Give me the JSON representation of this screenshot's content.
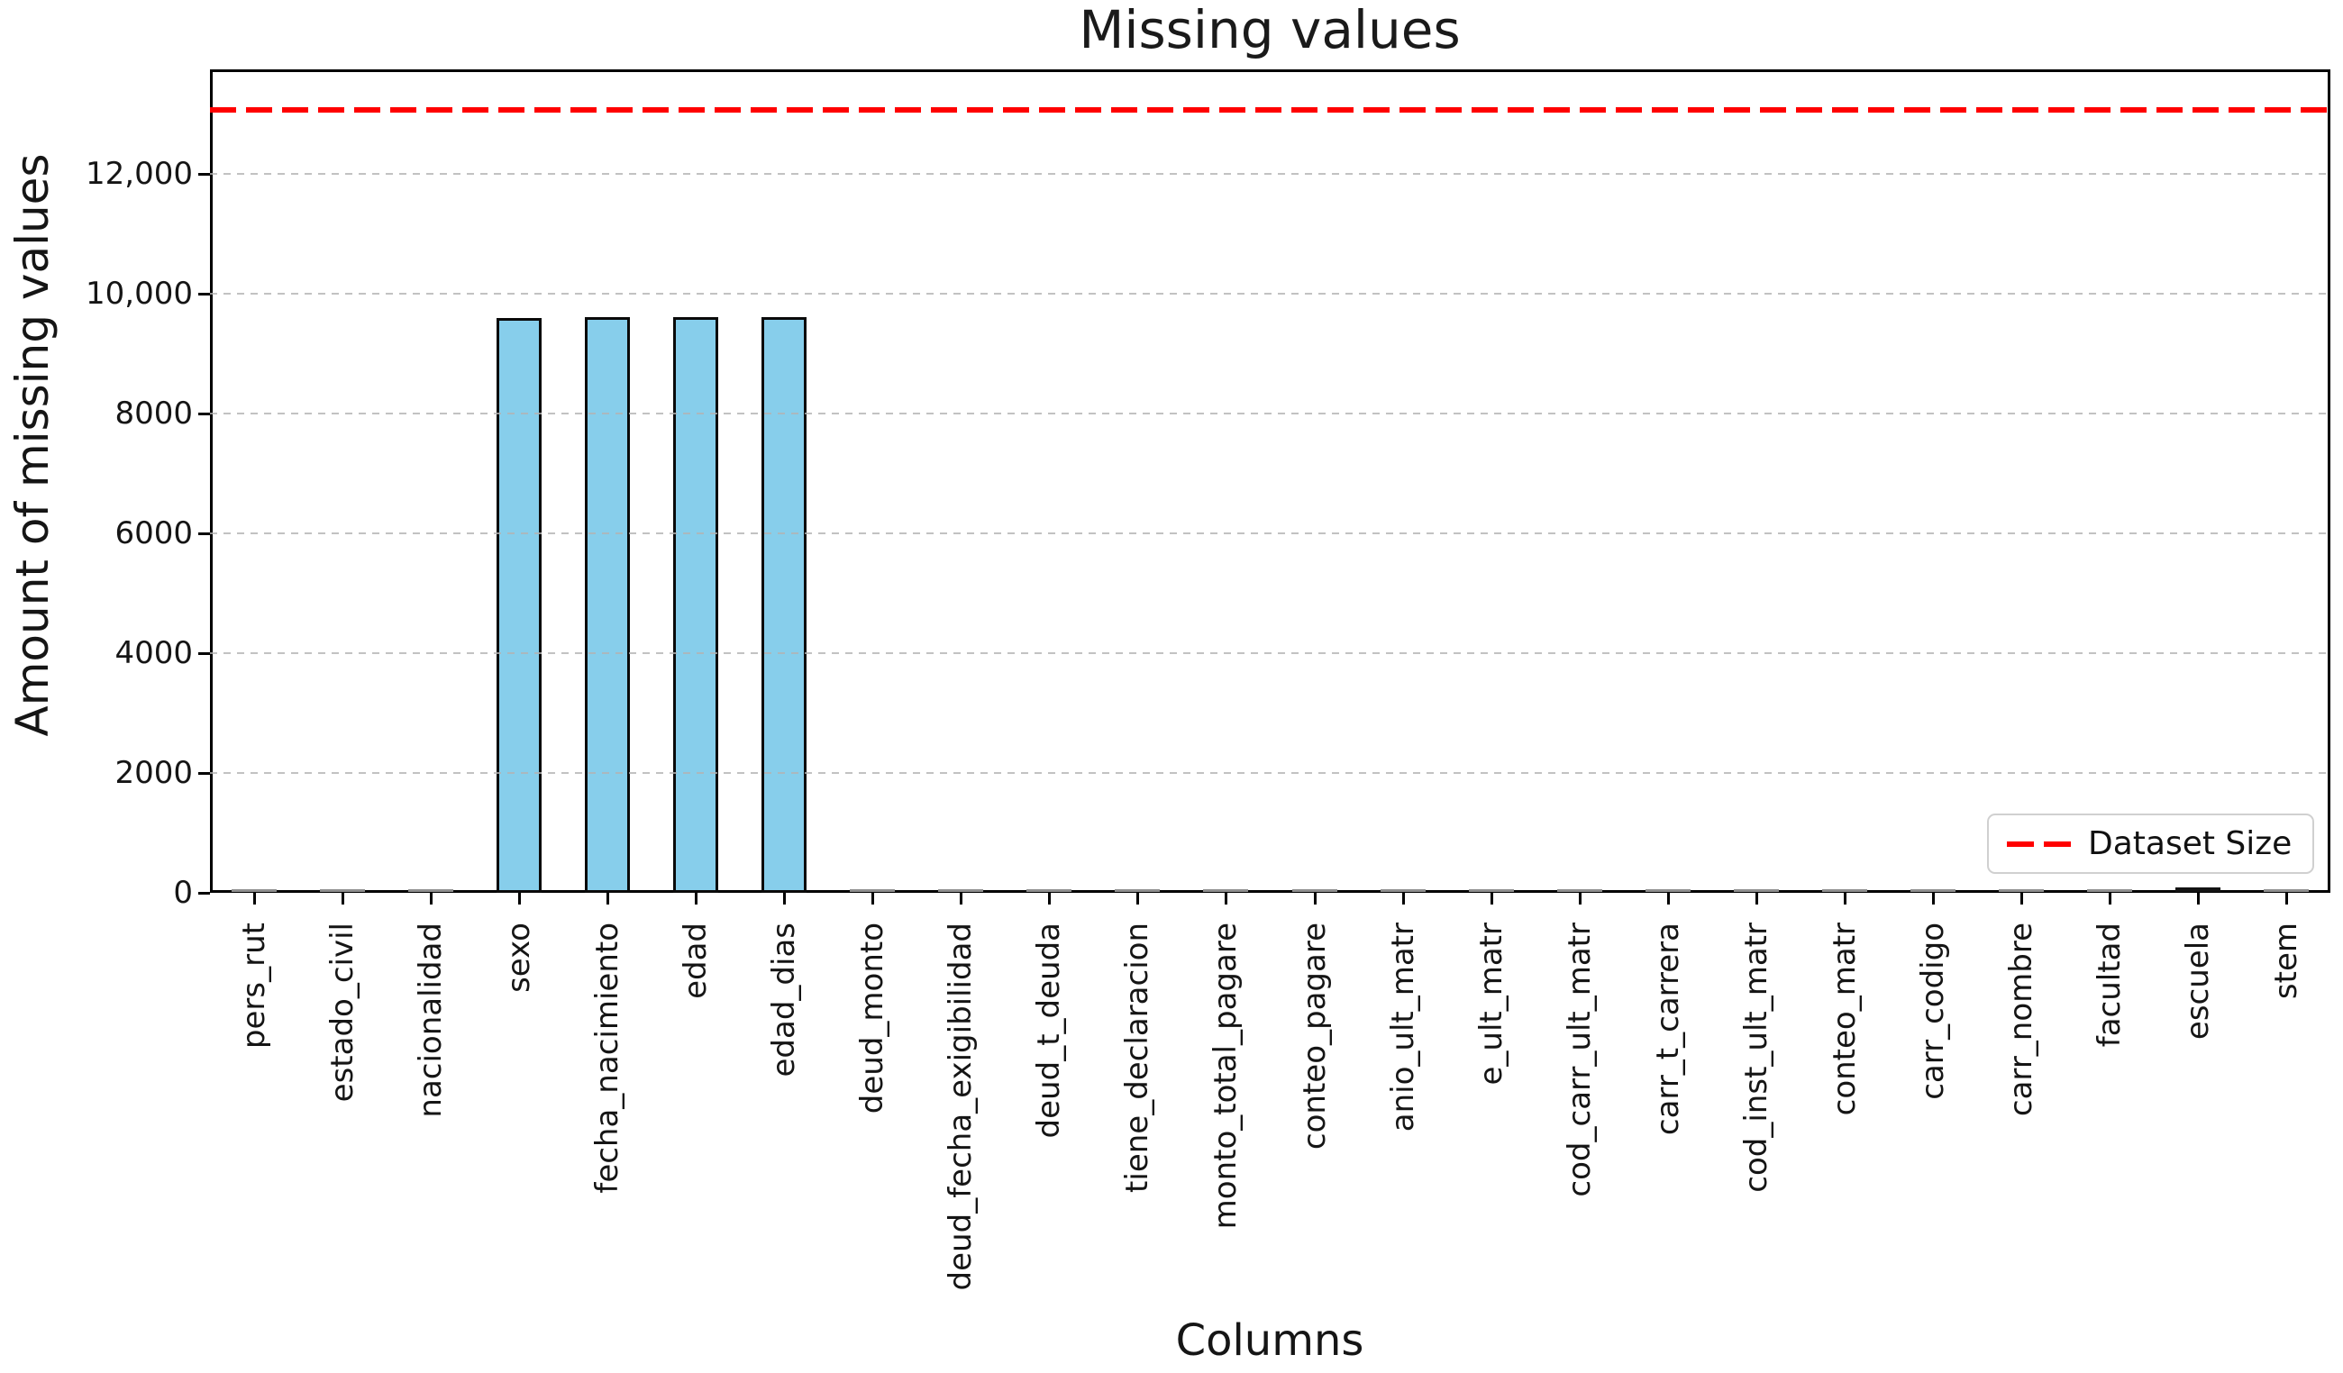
{
  "chart_data": {
    "type": "bar",
    "title": "Missing values",
    "xlabel": "Columns",
    "ylabel": "Amount of missing values",
    "categories": [
      "pers_rut",
      "estado_civil",
      "nacionalidad",
      "sexo",
      "fecha_nacimiento",
      "edad",
      "edad_dias",
      "deud_monto",
      "deud_fecha_exigibilidad",
      "deud_t_deuda",
      "tiene_declaracion",
      "monto_total_pagare",
      "conteo_pagare",
      "anio_ult_matr",
      "e_ult_matr",
      "cod_carr_ult_matr",
      "carr_t_carrera",
      "cod_inst_ult_matr",
      "conteo_matr",
      "carr_codigo",
      "carr_nombre",
      "facultad",
      "escuela",
      "stem"
    ],
    "values": [
      10,
      12,
      10,
      9590,
      9610,
      9610,
      9610,
      12,
      14,
      12,
      10,
      12,
      12,
      10,
      10,
      12,
      12,
      12,
      12,
      10,
      10,
      12,
      70,
      25
    ],
    "dataset_size_line": {
      "label": "Dataset Size",
      "value": 13070,
      "color": "#ff0000",
      "style": "dashed"
    },
    "legend": {
      "position": "lower right",
      "entries": [
        {
          "label": "Dataset Size",
          "color": "#ff0000",
          "line_style": "dashed"
        }
      ]
    },
    "bar_color": "#87ceeb",
    "bar_edge_color": "#000000",
    "ytick_labels": [
      "0",
      "2000",
      "4000",
      "6000",
      "8000",
      "10,000",
      "12,000"
    ],
    "ytick_values": [
      0,
      2000,
      4000,
      6000,
      8000,
      10000,
      12000
    ],
    "ylim": [
      0,
      13750
    ],
    "grid": {
      "axis": "y",
      "style": "dashed",
      "color": "#b3b3b3"
    }
  }
}
